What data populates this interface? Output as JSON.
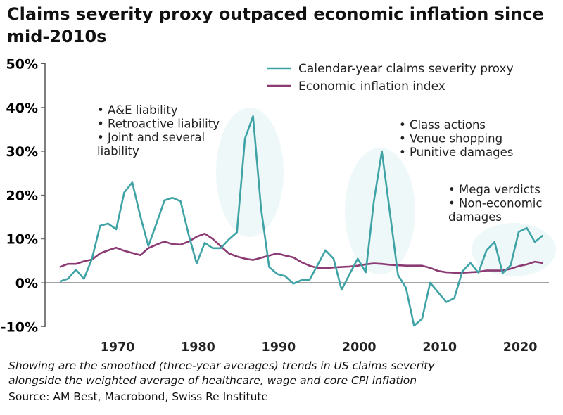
{
  "chart_data": {
    "type": "line",
    "title": "Claims severity proxy outpaced economic inflation since mid-2010s",
    "x": [
      1963,
      1964,
      1965,
      1966,
      1967,
      1968,
      1969,
      1970,
      1971,
      1972,
      1973,
      1974,
      1975,
      1976,
      1977,
      1978,
      1979,
      1980,
      1981,
      1982,
      1983,
      1984,
      1985,
      1986,
      1987,
      1988,
      1989,
      1990,
      1991,
      1992,
      1993,
      1994,
      1995,
      1996,
      1997,
      1998,
      1999,
      2000,
      2001,
      2002,
      2003,
      2004,
      2005,
      2006,
      2007,
      2008,
      2009,
      2010,
      2011,
      2012,
      2013,
      2014,
      2015,
      2016,
      2017,
      2018,
      2019,
      2020,
      2021,
      2022,
      2023
    ],
    "series": [
      {
        "name": "Calendar-year claims severity proxy",
        "color": "#3fa3a6",
        "values": [
          0.3,
          0.9,
          3.0,
          0.9,
          5.5,
          13.0,
          13.5,
          12.2,
          20.6,
          22.9,
          15.2,
          8.4,
          13.5,
          18.8,
          19.4,
          18.6,
          11.0,
          4.4,
          9.1,
          7.9,
          7.9,
          9.9,
          11.5,
          32.9,
          38.0,
          16.9,
          3.6,
          2.0,
          1.5,
          -0.2,
          0.6,
          0.6,
          4.0,
          7.4,
          5.5,
          -1.6,
          2.0,
          5.5,
          2.4,
          18.5,
          30.0,
          16.0,
          1.8,
          -1.2,
          -9.8,
          -8.2,
          0.0,
          -2.2,
          -4.4,
          -3.5,
          2.6,
          4.5,
          2.3,
          7.4,
          9.3,
          2.2,
          4.0,
          11.6,
          12.5,
          9.3,
          10.8
        ]
      },
      {
        "name": "Economic inflation index",
        "color": "#8b3a74",
        "values": [
          3.6,
          4.3,
          4.3,
          4.9,
          5.3,
          6.7,
          7.4,
          8.0,
          7.3,
          6.8,
          6.3,
          7.9,
          8.7,
          9.4,
          8.8,
          8.7,
          9.4,
          10.5,
          11.2,
          10.0,
          8.3,
          6.7,
          6.0,
          5.5,
          5.2,
          5.7,
          6.2,
          6.7,
          6.2,
          5.8,
          4.7,
          3.9,
          3.4,
          3.3,
          3.5,
          3.6,
          3.7,
          3.9,
          4.2,
          4.4,
          4.3,
          4.1,
          4.0,
          3.9,
          3.9,
          3.9,
          3.4,
          2.7,
          2.4,
          2.3,
          2.3,
          2.4,
          2.5,
          2.8,
          2.8,
          2.8,
          3.2,
          3.8,
          4.2,
          4.8,
          4.5
        ]
      }
    ],
    "ylim": [
      -10,
      50
    ],
    "yticks": [
      "50%",
      "40%",
      "30%",
      "20%",
      "10%",
      "0%",
      "-10%"
    ],
    "xticks": [
      "1970",
      "1980",
      "1990",
      "2000",
      "2010",
      "2020"
    ],
    "legend": "top-right",
    "grid": false,
    "annotations": [
      {
        "lines": [
          "• A&E liability",
          "• Retroactive liability",
          "• Joint and several",
          "liability"
        ],
        "period": [
          1985,
          1988
        ]
      },
      {
        "lines": [
          "• Class actions",
          "• Venue shopping",
          "• Punitive damages"
        ],
        "period": [
          2001,
          2005
        ]
      },
      {
        "lines": [
          "• Mega verdicts",
          "• Non-economic",
          "damages"
        ],
        "period": [
          2015,
          2023
        ]
      }
    ]
  },
  "caption": [
    "Showing are the smoothed (three-year averages) trends in US claims severity",
    "alongside the weighted average of healthcare, wage and core CPI inflation"
  ],
  "source": "Source: AM Best, Macrobond, Swiss Re Institute"
}
